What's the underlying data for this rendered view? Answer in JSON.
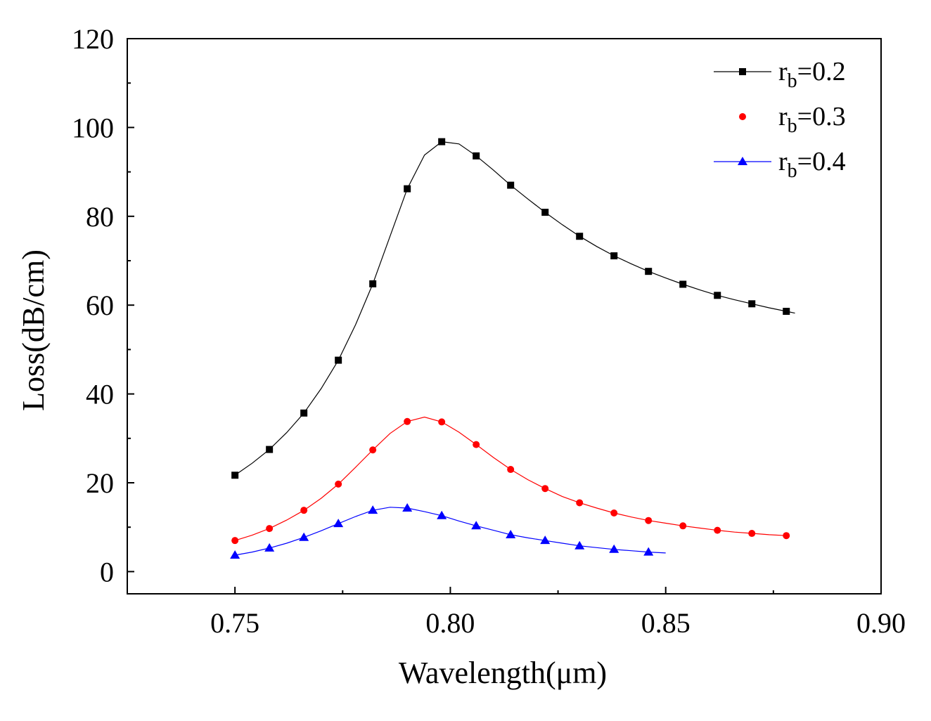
{
  "chart_data": {
    "type": "line",
    "title": "",
    "xlabel": "Wavelength(μm)",
    "ylabel": "Loss(dB/cm)",
    "xlim": [
      0.725,
      0.9
    ],
    "ylim": [
      -5,
      120
    ],
    "xticks": [
      0.75,
      0.8,
      0.85,
      0.9
    ],
    "xtick_labels": [
      "0.75",
      "0.80",
      "0.85",
      "0.90"
    ],
    "yticks": [
      0,
      20,
      40,
      60,
      80,
      100,
      120
    ],
    "ytick_labels": [
      "0",
      "20",
      "40",
      "60",
      "80",
      "100",
      "120"
    ],
    "grid": false,
    "legend_position": "top-right",
    "series": [
      {
        "name": "rb=0.2",
        "label_main": "r",
        "label_sub": "b",
        "label_rest": "=0.2",
        "color": "#000000",
        "marker": "square",
        "x": [
          0.75,
          0.758,
          0.766,
          0.774,
          0.782,
          0.79,
          0.798,
          0.806,
          0.814,
          0.822,
          0.83,
          0.838,
          0.846,
          0.854,
          0.862,
          0.87,
          0.878
        ],
        "y": [
          21.7,
          27.5,
          35.7,
          47.6,
          64.8,
          86.2,
          96.8,
          93.6,
          87.0,
          80.9,
          75.5,
          71.1,
          67.6,
          64.7,
          62.2,
          60.3,
          58.6
        ],
        "curve_x": [
          0.75,
          0.754,
          0.758,
          0.762,
          0.766,
          0.77,
          0.774,
          0.778,
          0.782,
          0.786,
          0.79,
          0.794,
          0.798,
          0.802,
          0.806,
          0.81,
          0.814,
          0.818,
          0.822,
          0.826,
          0.83,
          0.834,
          0.838,
          0.842,
          0.846,
          0.85,
          0.854,
          0.858,
          0.862,
          0.866,
          0.87,
          0.874,
          0.878,
          0.88
        ],
        "curve_y": [
          21.7,
          24.4,
          27.5,
          31.3,
          35.7,
          41.2,
          47.6,
          55.6,
          64.8,
          75.5,
          86.2,
          93.8,
          96.8,
          96.3,
          93.6,
          90.4,
          87.0,
          83.9,
          80.9,
          78.1,
          75.5,
          73.2,
          71.1,
          69.3,
          67.6,
          66.1,
          64.7,
          63.4,
          62.2,
          61.2,
          60.3,
          59.4,
          58.6,
          58.2
        ]
      },
      {
        "name": "rb=0.3",
        "label_main": "r",
        "label_sub": "b",
        "label_rest": "=0.3",
        "color": "#ff0000",
        "marker": "circle",
        "x": [
          0.75,
          0.758,
          0.766,
          0.774,
          0.782,
          0.79,
          0.798,
          0.806,
          0.814,
          0.822,
          0.83,
          0.838,
          0.846,
          0.854,
          0.862,
          0.87,
          0.878
        ],
        "y": [
          7.0,
          9.7,
          13.8,
          19.7,
          27.4,
          33.8,
          33.7,
          28.6,
          23.0,
          18.7,
          15.5,
          13.2,
          11.5,
          10.3,
          9.3,
          8.6,
          8.1
        ],
        "curve_x": [
          0.75,
          0.754,
          0.758,
          0.762,
          0.766,
          0.77,
          0.774,
          0.778,
          0.782,
          0.786,
          0.79,
          0.794,
          0.798,
          0.802,
          0.806,
          0.81,
          0.814,
          0.818,
          0.822,
          0.826,
          0.83,
          0.834,
          0.838,
          0.842,
          0.846,
          0.85,
          0.854,
          0.858,
          0.862,
          0.866,
          0.87,
          0.874,
          0.878
        ],
        "curve_y": [
          7.0,
          8.2,
          9.7,
          11.6,
          13.8,
          16.5,
          19.7,
          23.5,
          27.4,
          31.1,
          33.8,
          34.8,
          33.7,
          31.4,
          28.6,
          25.7,
          23.0,
          20.7,
          18.7,
          16.9,
          15.5,
          14.3,
          13.2,
          12.3,
          11.5,
          10.9,
          10.3,
          9.8,
          9.3,
          8.9,
          8.6,
          8.3,
          8.1
        ]
      },
      {
        "name": "rb=0.4",
        "label_main": "r",
        "label_sub": "b",
        "label_rest": "=0.4",
        "color": "#0000ff",
        "marker": "triangle",
        "x": [
          0.75,
          0.758,
          0.766,
          0.774,
          0.782,
          0.79,
          0.798,
          0.806,
          0.814,
          0.822,
          0.83,
          0.838,
          0.846
        ],
        "y": [
          3.7,
          5.3,
          7.7,
          10.8,
          13.8,
          14.3,
          12.6,
          10.3,
          8.3,
          7.0,
          5.8,
          5.0,
          4.4
        ],
        "curve_x": [
          0.75,
          0.754,
          0.758,
          0.762,
          0.766,
          0.77,
          0.774,
          0.778,
          0.782,
          0.786,
          0.79,
          0.794,
          0.798,
          0.802,
          0.806,
          0.81,
          0.814,
          0.818,
          0.822,
          0.826,
          0.83,
          0.834,
          0.838,
          0.842,
          0.846,
          0.85
        ],
        "curve_y": [
          3.7,
          4.4,
          5.3,
          6.4,
          7.7,
          9.2,
          10.8,
          12.4,
          13.8,
          14.5,
          14.3,
          13.5,
          12.6,
          11.4,
          10.3,
          9.3,
          8.3,
          7.6,
          7.0,
          6.4,
          5.8,
          5.4,
          5.0,
          4.7,
          4.4,
          4.2
        ]
      }
    ]
  }
}
